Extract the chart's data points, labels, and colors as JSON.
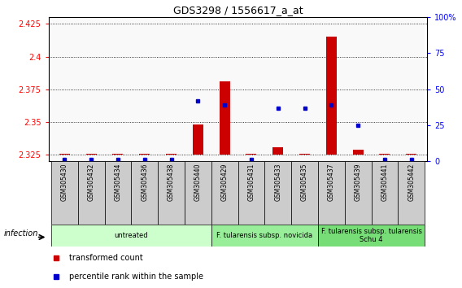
{
  "title": "GDS3298 / 1556617_a_at",
  "samples": [
    "GSM305430",
    "GSM305432",
    "GSM305434",
    "GSM305436",
    "GSM305438",
    "GSM305440",
    "GSM305429",
    "GSM305431",
    "GSM305433",
    "GSM305435",
    "GSM305437",
    "GSM305439",
    "GSM305441",
    "GSM305442"
  ],
  "transformed_count": [
    2.326,
    2.326,
    2.326,
    2.326,
    2.326,
    2.348,
    2.381,
    2.326,
    2.331,
    2.326,
    2.415,
    2.329,
    2.326,
    2.326
  ],
  "percentile_rank_pct": [
    1,
    1,
    1,
    1,
    1,
    42,
    39,
    1,
    37,
    37,
    39,
    25,
    1,
    1
  ],
  "ylim_left": [
    2.32,
    2.43
  ],
  "ylim_right": [
    0,
    100
  ],
  "yticks_left": [
    2.325,
    2.35,
    2.375,
    2.4,
    2.425
  ],
  "yticks_right": [
    0,
    25,
    50,
    75,
    100
  ],
  "group_labels": [
    "untreated",
    "F. tularensis subsp. novicida",
    "F. tularensis subsp. tularensis\nSchu 4"
  ],
  "group_ranges": [
    0,
    6,
    10,
    14
  ],
  "group_colors": [
    "#ccffcc",
    "#99ee99",
    "#77dd77"
  ],
  "infection_label": "infection",
  "bar_color": "#cc0000",
  "dot_color": "#0000cc",
  "baseline": 2.325,
  "legend_labels": [
    "transformed count",
    "percentile rank within the sample"
  ]
}
